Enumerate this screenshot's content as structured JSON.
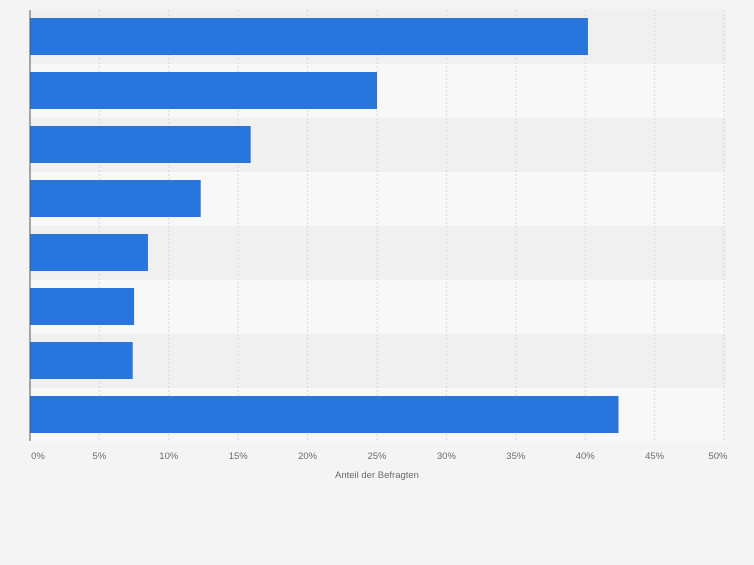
{
  "chart_data": {
    "type": "bar",
    "orientation": "horizontal",
    "categories": [
      "",
      "",
      "",
      "",
      "",
      "",
      "",
      ""
    ],
    "values": [
      40.2,
      25.0,
      15.9,
      12.3,
      8.5,
      7.5,
      7.4,
      42.4
    ],
    "xlabel": "Anteil der Befragten",
    "ylabel": "",
    "xlim": [
      0,
      50
    ],
    "xticks": [
      0,
      5,
      10,
      15,
      20,
      25,
      30,
      35,
      40,
      45,
      50
    ],
    "xtick_labels": [
      "0%",
      "5%",
      "10%",
      "15%",
      "20%",
      "25%",
      "30%",
      "35%",
      "40%",
      "45%",
      "50%"
    ],
    "grid": true,
    "legend": "none",
    "colors": {
      "bar": "#2876dd",
      "band_dark": "#f0f0f1",
      "band_light": "#f8f8f9",
      "grid": "#d9d9dc",
      "axis": "#555555",
      "text": "#6b6b6b",
      "background": "#f4f4f5"
    }
  }
}
